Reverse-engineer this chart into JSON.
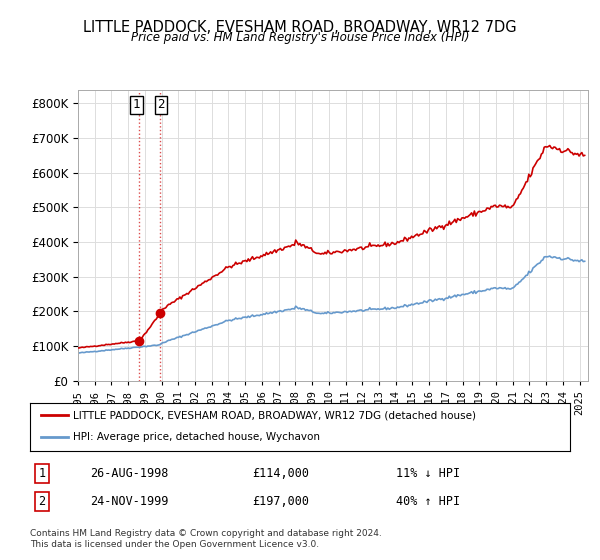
{
  "title": "LITTLE PADDOCK, EVESHAM ROAD, BROADWAY, WR12 7DG",
  "subtitle": "Price paid vs. HM Land Registry's House Price Index (HPI)",
  "legend_label_red": "LITTLE PADDOCK, EVESHAM ROAD, BROADWAY, WR12 7DG (detached house)",
  "legend_label_blue": "HPI: Average price, detached house, Wychavon",
  "sale1_num": "1",
  "sale1_date": "26-AUG-1998",
  "sale1_price": "£114,000",
  "sale1_hpi": "11% ↓ HPI",
  "sale2_num": "2",
  "sale2_date": "24-NOV-1999",
  "sale2_price": "£197,000",
  "sale2_hpi": "40% ↑ HPI",
  "footnote": "Contains HM Land Registry data © Crown copyright and database right 2024.\nThis data is licensed under the Open Government Licence v3.0.",
  "red_color": "#cc0000",
  "blue_color": "#6699cc",
  "background_color": "#ffffff",
  "grid_color": "#dddddd",
  "sale1_x": 1998.65,
  "sale2_x": 1999.9,
  "sale1_y": 114000,
  "sale2_y": 197000,
  "ylim": [
    0,
    840000
  ],
  "yticks": [
    0,
    100000,
    200000,
    300000,
    400000,
    500000,
    600000,
    700000,
    800000
  ],
  "xmin": 1995.0,
  "xmax": 2025.5
}
